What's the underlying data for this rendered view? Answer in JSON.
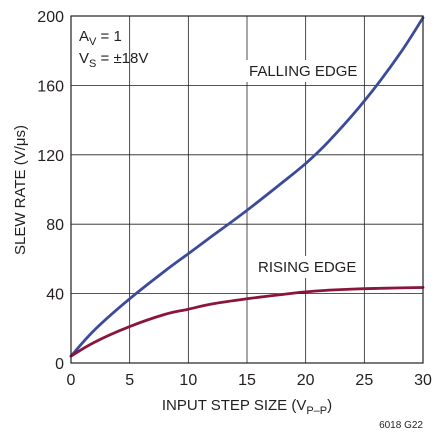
{
  "chart_data": {
    "type": "line",
    "xlabel": "INPUT STEP SIZE (V",
    "xlabel_sub": "P–P",
    "xlabel_close": ")",
    "ylabel": "SLEW RATE (V/μs)",
    "xlim": [
      0,
      30
    ],
    "ylim": [
      0,
      200
    ],
    "x_ticks": [
      0,
      5,
      10,
      15,
      20,
      25,
      30
    ],
    "y_ticks": [
      0,
      40,
      80,
      120,
      160,
      200
    ],
    "grid": true,
    "annotations": {
      "gain_main": "A",
      "gain_sub": "V",
      "gain_rest": " = 1",
      "supply_main": "V",
      "supply_sub": "S",
      "supply_rest": " = ±18V",
      "figure_code": "6018 G22"
    },
    "series": [
      {
        "name": "FALLING EDGE",
        "color": "#3b4a9a",
        "x": [
          0,
          2,
          5,
          8,
          10,
          12,
          15,
          18,
          20,
          22,
          25,
          28,
          30
        ],
        "y": [
          4,
          19,
          37,
          53,
          63,
          73,
          88,
          104,
          115,
          128,
          151,
          178,
          199
        ]
      },
      {
        "name": "RISING EDGE",
        "color": "#8b1538",
        "x": [
          0,
          2,
          5,
          8,
          10,
          12,
          15,
          18,
          20,
          22,
          25,
          28,
          30
        ],
        "y": [
          4,
          12,
          21,
          28,
          31,
          34,
          37,
          39.5,
          41,
          42,
          42.8,
          43.3,
          43.5
        ]
      }
    ]
  }
}
